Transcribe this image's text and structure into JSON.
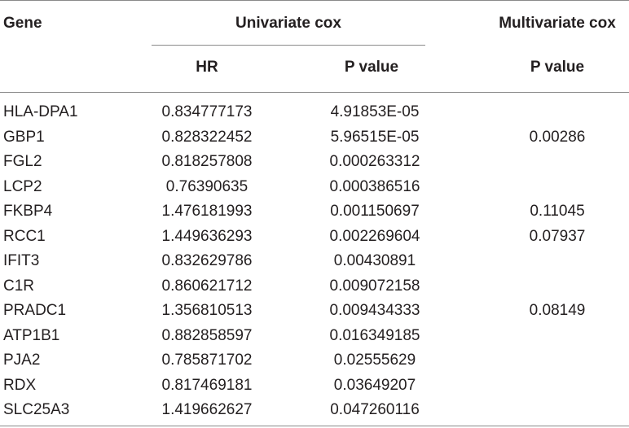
{
  "table": {
    "headers": {
      "gene": "Gene",
      "univariate": "Univariate cox",
      "multivariate": "Multivariate cox",
      "hr": "HR",
      "p_value_uni": "P value",
      "p_value_multi": "P value"
    },
    "rows": [
      {
        "gene": "HLA-DPA1",
        "hr": "0.834777173",
        "p_uni": "4.91853E-05",
        "p_multi": ""
      },
      {
        "gene": "GBP1",
        "hr": "0.828322452",
        "p_uni": "5.96515E-05",
        "p_multi": "0.00286"
      },
      {
        "gene": "FGL2",
        "hr": "0.818257808",
        "p_uni": "0.000263312",
        "p_multi": ""
      },
      {
        "gene": "LCP2",
        "hr": "0.76390635",
        "p_uni": "0.000386516",
        "p_multi": ""
      },
      {
        "gene": "FKBP4",
        "hr": "1.476181993",
        "p_uni": "0.001150697",
        "p_multi": "0.11045"
      },
      {
        "gene": "RCC1",
        "hr": "1.449636293",
        "p_uni": "0.002269604",
        "p_multi": "0.07937"
      },
      {
        "gene": "IFIT3",
        "hr": "0.832629786",
        "p_uni": "0.00430891",
        "p_multi": ""
      },
      {
        "gene": "C1R",
        "hr": "0.860621712",
        "p_uni": "0.009072158",
        "p_multi": ""
      },
      {
        "gene": "PRADC1",
        "hr": "1.356810513",
        "p_uni": "0.009434333",
        "p_multi": "0.08149"
      },
      {
        "gene": "ATP1B1",
        "hr": "0.882858597",
        "p_uni": "0.016349185",
        "p_multi": ""
      },
      {
        "gene": "PJA2",
        "hr": "0.785871702",
        "p_uni": "0.02555629",
        "p_multi": ""
      },
      {
        "gene": "RDX",
        "hr": "0.817469181",
        "p_uni": "0.03649207",
        "p_multi": ""
      },
      {
        "gene": "SLC25A3",
        "hr": "1.419662627",
        "p_uni": "0.047260116",
        "p_multi": ""
      }
    ]
  }
}
